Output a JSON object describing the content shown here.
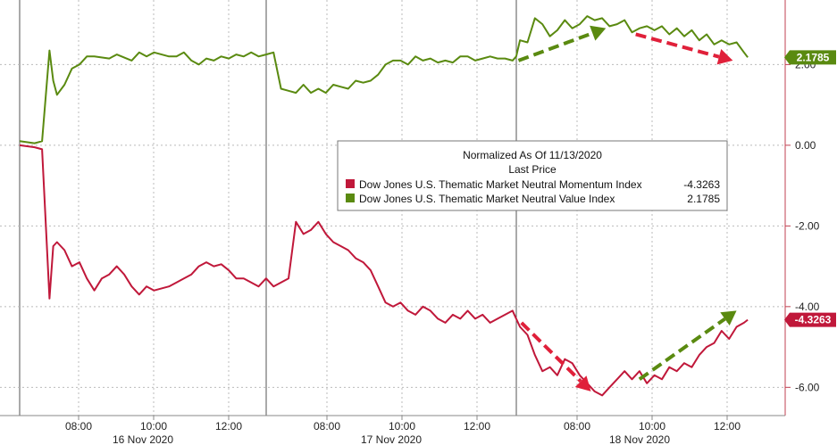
{
  "chart_data": {
    "type": "line",
    "legend": {
      "title": "Normalized As Of 11/13/2020",
      "subtitle": "Last Price",
      "entries": [
        {
          "name": "Dow Jones U.S. Thematic Market Neutral Momentum Index",
          "value": "-4.3263",
          "color": "#c0183a"
        },
        {
          "name": "Dow Jones U.S. Thematic Market Neutral Value Index",
          "value": "2.1785",
          "color": "#5a8a10"
        }
      ]
    },
    "y_ticks": [
      "2.00",
      "0.00",
      "-2.00",
      "-4.00",
      "-6.00"
    ],
    "y_tick_values": [
      2,
      0,
      -2,
      -4,
      -6
    ],
    "ylim": [
      -6.7,
      3.6
    ],
    "x_time_labels": [
      "08:00",
      "10:00",
      "12:00",
      "08:00",
      "10:00",
      "12:00",
      "08:00",
      "10:00",
      "12:00"
    ],
    "x_date_labels": [
      "16 Nov 2020",
      "17 Nov 2020",
      "18 Nov 2020"
    ],
    "last_value_tags": [
      {
        "text": "2.1785",
        "value": 2.1785,
        "color": "#5a8a10"
      },
      {
        "text": "-4.3263",
        "value": -4.3263,
        "color": "#c0183a"
      }
    ],
    "series": [
      {
        "name": "Dow Jones U.S. Thematic Market Neutral Value Index",
        "color": "#5a8a10",
        "x": [
          0,
          0.02,
          0.03,
          0.04,
          0.045,
          0.05,
          0.06,
          0.07,
          0.08,
          0.09,
          0.1,
          0.12,
          0.13,
          0.15,
          0.16,
          0.17,
          0.18,
          0.2,
          0.21,
          0.22,
          0.23,
          0.24,
          0.25,
          0.26,
          0.27,
          0.28,
          0.29,
          0.3,
          0.31,
          0.32,
          0.33,
          0.34,
          0.35,
          0.36,
          0.37,
          0.38,
          0.39,
          0.4,
          0.41,
          0.42,
          0.43,
          0.44,
          0.45,
          0.46,
          0.47,
          0.48,
          0.49,
          0.5,
          0.51,
          0.52,
          0.53,
          0.54,
          0.55,
          0.56,
          0.57,
          0.58,
          0.59,
          0.6,
          0.61,
          0.62,
          0.63,
          0.64,
          0.65,
          0.66,
          0.665,
          0.67,
          0.68,
          0.69,
          0.7,
          0.71,
          0.72,
          0.73,
          0.74,
          0.75,
          0.76,
          0.77,
          0.78,
          0.79,
          0.8,
          0.81,
          0.82,
          0.83,
          0.84,
          0.85,
          0.86,
          0.87,
          0.88,
          0.89,
          0.9,
          0.91,
          0.92,
          0.93,
          0.94,
          0.95,
          0.96,
          0.97,
          0.975
        ],
        "values": [
          0.1,
          0.05,
          0.1,
          2.35,
          1.6,
          1.25,
          1.5,
          1.9,
          2.0,
          2.2,
          2.2,
          2.15,
          2.25,
          2.1,
          2.3,
          2.2,
          2.3,
          2.2,
          2.2,
          2.3,
          2.1,
          2.0,
          2.15,
          2.1,
          2.2,
          2.15,
          2.25,
          2.2,
          2.3,
          2.2,
          2.25,
          2.3,
          1.4,
          1.35,
          1.3,
          1.5,
          1.3,
          1.4,
          1.3,
          1.5,
          1.45,
          1.4,
          1.6,
          1.55,
          1.6,
          1.75,
          2.0,
          2.1,
          2.1,
          2.0,
          2.2,
          2.1,
          2.15,
          2.05,
          2.1,
          2.05,
          2.2,
          2.2,
          2.1,
          2.15,
          2.2,
          2.15,
          2.15,
          2.1,
          2.2,
          2.6,
          2.55,
          3.15,
          3.0,
          2.7,
          2.85,
          3.1,
          2.9,
          3.0,
          3.2,
          3.1,
          3.15,
          2.95,
          3.0,
          3.1,
          2.8,
          2.9,
          2.95,
          2.85,
          2.95,
          2.75,
          2.9,
          2.7,
          2.85,
          2.6,
          2.75,
          2.5,
          2.6,
          2.5,
          2.55,
          2.3,
          2.1785
        ]
      },
      {
        "name": "Dow Jones U.S. Thematic Market Neutral Momentum Index",
        "color": "#c0183a",
        "x": [
          0,
          0.02,
          0.03,
          0.04,
          0.045,
          0.05,
          0.06,
          0.07,
          0.08,
          0.09,
          0.1,
          0.11,
          0.12,
          0.13,
          0.14,
          0.15,
          0.16,
          0.17,
          0.18,
          0.2,
          0.21,
          0.22,
          0.23,
          0.24,
          0.25,
          0.26,
          0.27,
          0.28,
          0.29,
          0.3,
          0.31,
          0.32,
          0.33,
          0.34,
          0.35,
          0.36,
          0.37,
          0.38,
          0.39,
          0.4,
          0.41,
          0.42,
          0.43,
          0.44,
          0.45,
          0.46,
          0.47,
          0.48,
          0.49,
          0.5,
          0.51,
          0.52,
          0.53,
          0.54,
          0.55,
          0.56,
          0.57,
          0.58,
          0.59,
          0.6,
          0.61,
          0.62,
          0.63,
          0.64,
          0.65,
          0.66,
          0.665,
          0.67,
          0.68,
          0.69,
          0.7,
          0.71,
          0.72,
          0.73,
          0.74,
          0.75,
          0.76,
          0.77,
          0.78,
          0.79,
          0.8,
          0.81,
          0.82,
          0.83,
          0.84,
          0.85,
          0.86,
          0.87,
          0.88,
          0.89,
          0.9,
          0.91,
          0.92,
          0.93,
          0.94,
          0.95,
          0.96,
          0.97,
          0.975
        ],
        "values": [
          0.0,
          -0.05,
          -0.1,
          -3.8,
          -2.5,
          -2.4,
          -2.6,
          -3.0,
          -2.9,
          -3.3,
          -3.6,
          -3.3,
          -3.2,
          -3.0,
          -3.2,
          -3.5,
          -3.7,
          -3.5,
          -3.6,
          -3.5,
          -3.4,
          -3.3,
          -3.2,
          -3.0,
          -2.9,
          -3.0,
          -2.95,
          -3.1,
          -3.3,
          -3.3,
          -3.4,
          -3.5,
          -3.3,
          -3.5,
          -3.4,
          -3.3,
          -1.9,
          -2.2,
          -2.1,
          -1.9,
          -2.2,
          -2.4,
          -2.5,
          -2.6,
          -2.8,
          -2.9,
          -3.1,
          -3.5,
          -3.9,
          -4.0,
          -3.9,
          -4.1,
          -4.2,
          -4.0,
          -4.1,
          -4.3,
          -4.4,
          -4.2,
          -4.3,
          -4.1,
          -4.3,
          -4.2,
          -4.4,
          -4.3,
          -4.2,
          -4.1,
          -4.3,
          -4.5,
          -4.7,
          -5.2,
          -5.6,
          -5.5,
          -5.7,
          -5.3,
          -5.4,
          -5.7,
          -5.9,
          -6.1,
          -6.2,
          -6.0,
          -5.8,
          -5.6,
          -5.8,
          -5.6,
          -5.9,
          -5.7,
          -5.8,
          -5.5,
          -5.6,
          -5.4,
          -5.5,
          -5.2,
          -5.0,
          -4.9,
          -4.6,
          -4.8,
          -4.5,
          -4.4,
          -4.3263
        ]
      }
    ],
    "annotations": [
      {
        "kind": "arrow",
        "color": "#5a8a10",
        "from": [
          0.668,
          2.1
        ],
        "to": [
          0.785,
          2.9
        ]
      },
      {
        "kind": "arrow",
        "color": "#e0203a",
        "from": [
          0.825,
          2.75
        ],
        "to": [
          0.955,
          2.1
        ]
      },
      {
        "kind": "arrow",
        "color": "#e0203a",
        "from": [
          0.672,
          -4.4
        ],
        "to": [
          0.765,
          -6.1
        ]
      },
      {
        "kind": "arrow",
        "color": "#5a8a10",
        "from": [
          0.83,
          -5.8
        ],
        "to": [
          0.96,
          -4.1
        ]
      }
    ]
  }
}
